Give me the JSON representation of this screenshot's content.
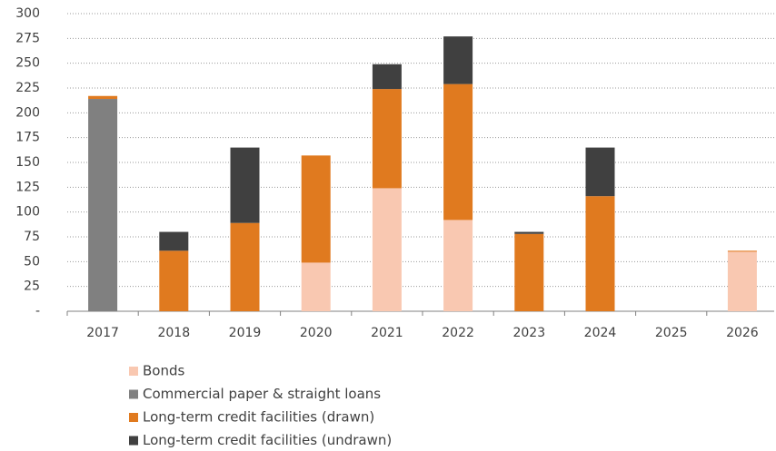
{
  "chart_data": {
    "type": "stacked-bar",
    "categories": [
      "2017",
      "2018",
      "2019",
      "2020",
      "2021",
      "2022",
      "2023",
      "2024",
      "2025",
      "2026"
    ],
    "series": [
      {
        "name": "Bonds",
        "color": "#f9c8b1",
        "values": [
          0,
          0,
          0,
          49,
          124,
          92,
          0,
          0,
          0,
          60
        ]
      },
      {
        "name": "Commercial paper & straight loans",
        "color": "#808080",
        "values": [
          214,
          0,
          0,
          0,
          0,
          0,
          0,
          0,
          0,
          0
        ]
      },
      {
        "name": "Long-term credit facilities (drawn)",
        "color": "#e07a1f",
        "values": [
          3,
          61,
          89,
          108,
          100,
          137,
          78,
          116,
          0,
          1
        ]
      },
      {
        "name": "Long-term credit facilities (undrawn)",
        "color": "#404040",
        "values": [
          0,
          19,
          76,
          0,
          25,
          48,
          2,
          49,
          0,
          0
        ]
      }
    ],
    "ylim": [
      0,
      300
    ],
    "yticks": [
      {
        "value": 0,
        "label": "-"
      },
      25,
      50,
      75,
      100,
      125,
      150,
      175,
      200,
      225,
      250,
      275,
      300
    ],
    "grid": true,
    "legend": "bottom"
  }
}
